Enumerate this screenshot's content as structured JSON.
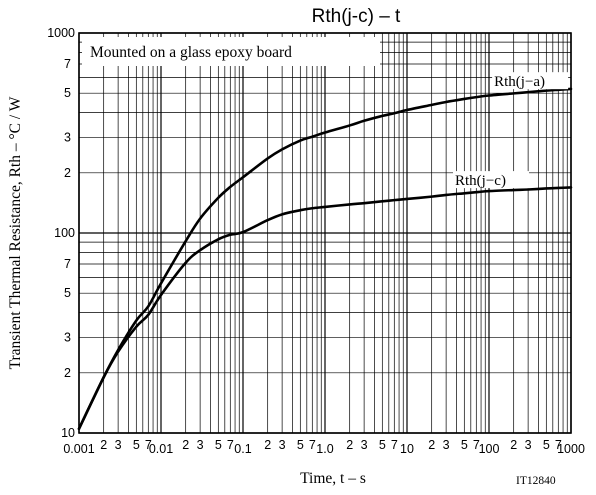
{
  "chart_data": {
    "type": "line",
    "title": "Rth(j-c)  –  t",
    "xlabel": "Time, t  –  s",
    "ylabel": "Transient Thermal Resistance, Rth  –  °C / W",
    "x_scale": "log",
    "y_scale": "log",
    "xlim": [
      0.001,
      1000
    ],
    "ylim": [
      10,
      1000
    ],
    "grid": true,
    "annotation": "Mounted on a glass epoxy board",
    "figure_id": "IT12840",
    "x_major_ticks": [
      0.001,
      0.01,
      0.1,
      1.0,
      10,
      100,
      1000
    ],
    "x_major_tick_labels": [
      "0.001",
      "0.01",
      "0.1",
      "1.0",
      "10",
      "100",
      "1000"
    ],
    "x_minor_ticks": [
      2,
      3,
      5,
      7
    ],
    "x_minor_tick_labels": [
      "2",
      "3",
      "5",
      "7"
    ],
    "y_major_ticks": [
      10,
      100,
      1000
    ],
    "y_major_tick_labels": [
      "10",
      "100",
      "1000"
    ],
    "y_minor_ticks": [
      2,
      3,
      5,
      7
    ],
    "y_minor_tick_labels": [
      "2",
      "3",
      "5",
      "7"
    ],
    "series": [
      {
        "name": "Rth(j−a)",
        "x": [
          0.001,
          0.002,
          0.003,
          0.005,
          0.007,
          0.01,
          0.02,
          0.03,
          0.05,
          0.07,
          0.1,
          0.2,
          0.3,
          0.5,
          0.7,
          1,
          2,
          3,
          5,
          7,
          10,
          20,
          30,
          50,
          70,
          100,
          200,
          300,
          500,
          700,
          1000
        ],
        "y": [
          10.5,
          19,
          26,
          36.5,
          43,
          56,
          91,
          118,
          150,
          170,
          190,
          236,
          262,
          290,
          303,
          318,
          345,
          364,
          385,
          397,
          412,
          437,
          452,
          468,
          478,
          487,
          499,
          506,
          515,
          520,
          525
        ]
      },
      {
        "name": "Rth(j−c)",
        "x": [
          0.001,
          0.002,
          0.003,
          0.005,
          0.007,
          0.01,
          0.02,
          0.03,
          0.05,
          0.07,
          0.1,
          0.2,
          0.3,
          0.5,
          0.7,
          1,
          2,
          3,
          5,
          7,
          10,
          20,
          30,
          50,
          70,
          100,
          200,
          300,
          500,
          700,
          1000
        ],
        "y": [
          10.5,
          19,
          25.5,
          34,
          39,
          49,
          71,
          82,
          93,
          98,
          101,
          116,
          124,
          130,
          133,
          135,
          139,
          141,
          144,
          146,
          148,
          152,
          155,
          158,
          160,
          162,
          164,
          165,
          167,
          168,
          169
        ]
      }
    ]
  }
}
